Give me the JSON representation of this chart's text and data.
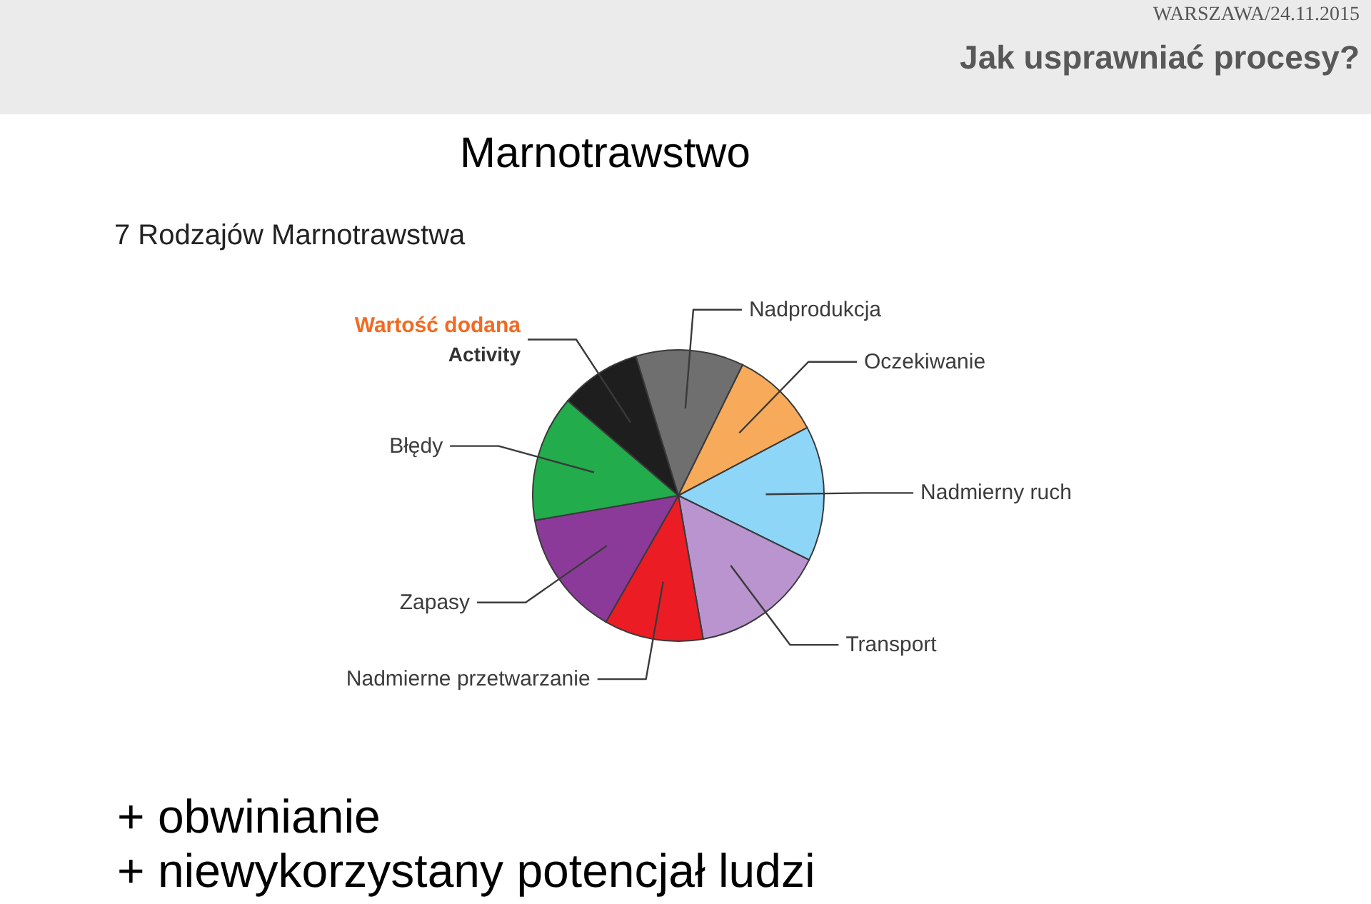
{
  "chart_data": {
    "type": "pie",
    "title": "Marnotrawstwo",
    "subtitle": "7 Rodzajów Marnotrawstwa",
    "categories": [
      "Nadprodukcja",
      "Oczekiwanie",
      "Nadmierny ruch",
      "Transport",
      "Nadmierne przetwarzanie",
      "Zapasy",
      "Błędy",
      "Wartość dodana\nActivity"
    ],
    "values": [
      12,
      10,
      15,
      15,
      11,
      14,
      14,
      9
    ],
    "colors": [
      "#6f6f6f",
      "#f7ab5a",
      "#8ed6f8",
      "#b994cf",
      "#ec1c24",
      "#8b3a9a",
      "#22ac4b",
      "#1e1e1e"
    ],
    "annotations": [
      "WARSZAWA/24.11.2015",
      "Jak usprawniać procesy?",
      "+ obwinianie",
      "+ niewykorzystany potencjał ludzi"
    ]
  }
}
